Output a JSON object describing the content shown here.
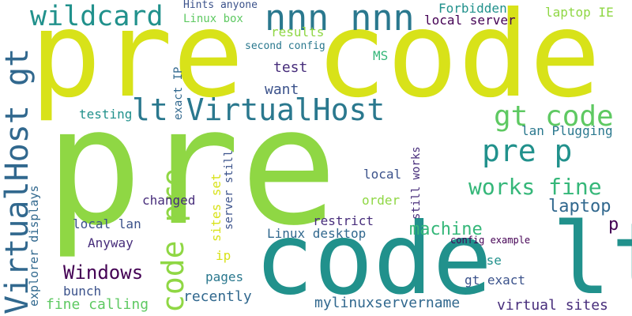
{
  "palette": {
    "yellow_green": "#d8e219",
    "light_green": "#8fd744",
    "medium_green": "#5ec962",
    "teal": "#2a788e",
    "dark_teal": "#21918c",
    "sea_green": "#35b779",
    "dark_blue": "#31688e",
    "indigo": "#3b528b",
    "deep_purple": "#440154",
    "purple": "#472d7b"
  },
  "words": {
    "pre_big": "pre",
    "pre_code": "pre code",
    "p": "p",
    "code_lt": "code lt",
    "wildcard": "wildcard",
    "nnn_nnn": "nnn nnn",
    "hints_anyone": "Hints anyone",
    "forbidden": "Forbidden",
    "laptop_ie": "laptop IE",
    "linux_box": "Linux box",
    "local_server": "local server",
    "results": "results",
    "second_config": "second config",
    "ms": "MS",
    "test": "test",
    "exact_ip": "exact IP",
    "want": "want",
    "lt_virtualhost": "lt VirtualHost",
    "virtualhost_gt": "VirtualHost gt",
    "testing": "testing",
    "gt_code": "gt code",
    "lan_plugging": "lan Plugging",
    "pre_p": "pre p",
    "works_fine": "works fine",
    "code_pre": "code pre",
    "still_works": "still works",
    "sites_set": "sites set",
    "server_still": "server still",
    "explorer_displays": "explorer displays",
    "local": "local",
    "changed": "changed",
    "order": "order",
    "laptop": "laptop",
    "local_lan": "local lan",
    "restrict": "restrict",
    "machine": "machine",
    "p_small": "p",
    "linux_desktop": "Linux desktop",
    "anyway": "Anyway",
    "config_example": "config example",
    "ip": "ip",
    "use": "use",
    "windows": "Windows",
    "pages": "pages",
    "gt_exact": "gt exact",
    "bunch": "bunch",
    "recently": "recently",
    "fine_calling": "fine calling",
    "mylinuxservername": "mylinuxservername",
    "virtual_sites": "virtual sites"
  }
}
